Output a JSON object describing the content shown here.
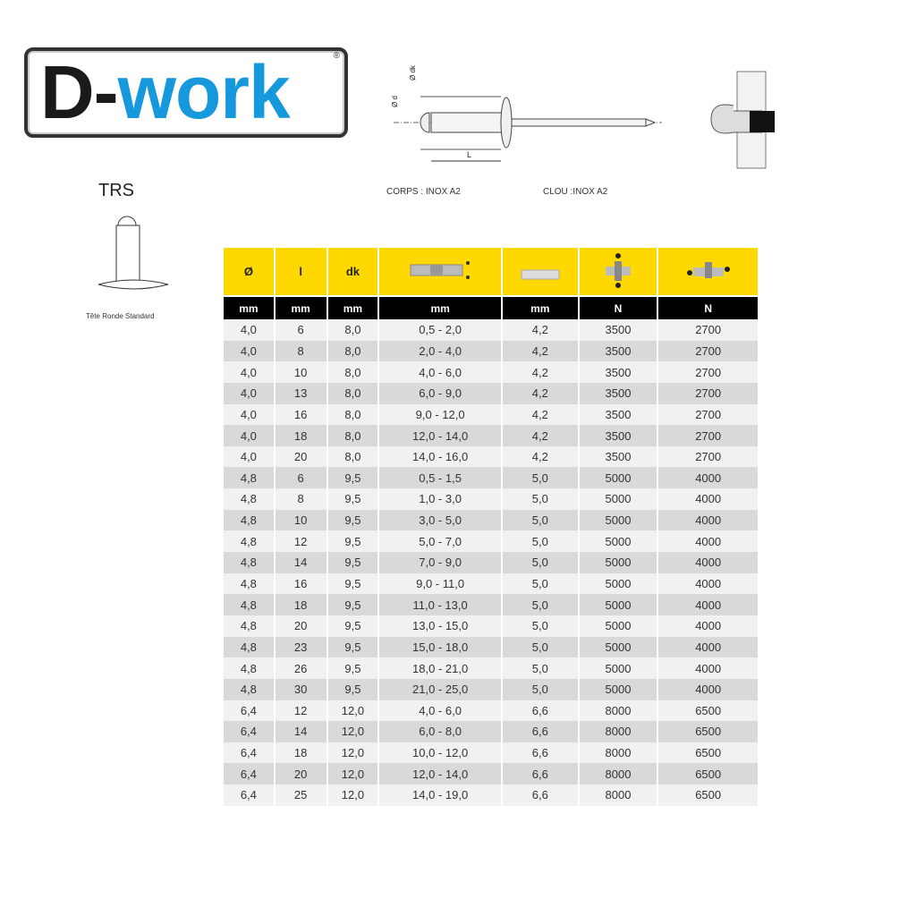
{
  "logo": {
    "text_a": "D-",
    "text_b": "work",
    "reg": "®"
  },
  "product": {
    "code": "TRS",
    "caption": "Tête Ronde Standard"
  },
  "materials": {
    "body": "CORPS : INOX A2",
    "mandrel": "CLOU :INOX A2"
  },
  "diagram": {
    "labels": [
      "Ø d",
      "Ø dk",
      "L"
    ]
  },
  "colors": {
    "header": "#ffd800",
    "units": "#000000",
    "brand": "#1598dc"
  },
  "table": {
    "headers": [
      "Ø",
      "l",
      "dk",
      "grip-range-icon",
      "drill-hole-icon",
      "shear-strength-icon",
      "tensile-strength-icon"
    ],
    "units": [
      "mm",
      "mm",
      "mm",
      "mm",
      "mm",
      "N",
      "N"
    ],
    "rows": [
      [
        "4,0",
        "6",
        "8,0",
        "0,5 - 2,0",
        "4,2",
        "3500",
        "2700"
      ],
      [
        "4,0",
        "8",
        "8,0",
        "2,0 - 4,0",
        "4,2",
        "3500",
        "2700"
      ],
      [
        "4,0",
        "10",
        "8,0",
        "4,0 - 6,0",
        "4,2",
        "3500",
        "2700"
      ],
      [
        "4,0",
        "13",
        "8,0",
        "6,0 - 9,0",
        "4,2",
        "3500",
        "2700"
      ],
      [
        "4,0",
        "16",
        "8,0",
        "9,0 - 12,0",
        "4,2",
        "3500",
        "2700"
      ],
      [
        "4,0",
        "18",
        "8,0",
        "12,0 - 14,0",
        "4,2",
        "3500",
        "2700"
      ],
      [
        "4,0",
        "20",
        "8,0",
        "14,0 - 16,0",
        "4,2",
        "3500",
        "2700"
      ],
      [
        "4,8",
        "6",
        "9,5",
        "0,5 - 1,5",
        "5,0",
        "5000",
        "4000"
      ],
      [
        "4,8",
        "8",
        "9,5",
        "1,0 - 3,0",
        "5,0",
        "5000",
        "4000"
      ],
      [
        "4,8",
        "10",
        "9,5",
        "3,0 - 5,0",
        "5,0",
        "5000",
        "4000"
      ],
      [
        "4,8",
        "12",
        "9,5",
        "5,0 - 7,0",
        "5,0",
        "5000",
        "4000"
      ],
      [
        "4,8",
        "14",
        "9,5",
        "7,0 - 9,0",
        "5,0",
        "5000",
        "4000"
      ],
      [
        "4,8",
        "16",
        "9,5",
        "9,0 - 11,0",
        "5,0",
        "5000",
        "4000"
      ],
      [
        "4,8",
        "18",
        "9,5",
        "11,0 - 13,0",
        "5,0",
        "5000",
        "4000"
      ],
      [
        "4,8",
        "20",
        "9,5",
        "13,0 - 15,0",
        "5,0",
        "5000",
        "4000"
      ],
      [
        "4,8",
        "23",
        "9,5",
        "15,0 - 18,0",
        "5,0",
        "5000",
        "4000"
      ],
      [
        "4,8",
        "26",
        "9,5",
        "18,0 - 21,0",
        "5,0",
        "5000",
        "4000"
      ],
      [
        "4,8",
        "30",
        "9,5",
        "21,0 - 25,0",
        "5,0",
        "5000",
        "4000"
      ],
      [
        "6,4",
        "12",
        "12,0",
        "4,0 - 6,0",
        "6,6",
        "8000",
        "6500"
      ],
      [
        "6,4",
        "14",
        "12,0",
        "6,0 - 8,0",
        "6,6",
        "8000",
        "6500"
      ],
      [
        "6,4",
        "18",
        "12,0",
        "10,0 - 12,0",
        "6,6",
        "8000",
        "6500"
      ],
      [
        "6,4",
        "20",
        "12,0",
        "12,0 - 14,0",
        "6,6",
        "8000",
        "6500"
      ],
      [
        "6,4",
        "25",
        "12,0",
        "14,0 - 19,0",
        "6,6",
        "8000",
        "6500"
      ]
    ]
  }
}
